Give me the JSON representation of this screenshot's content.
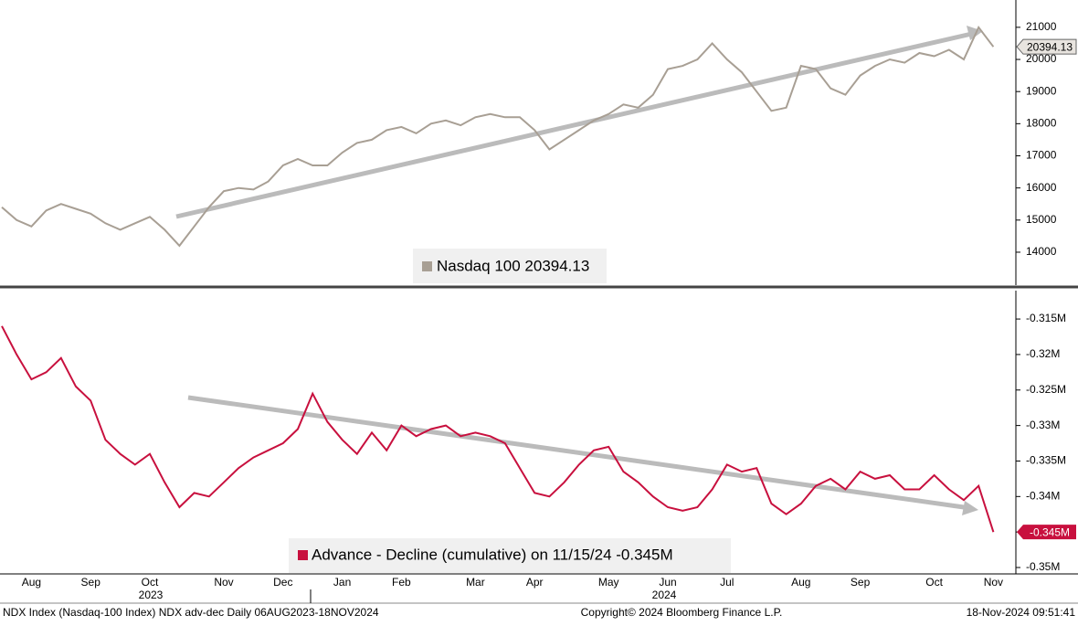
{
  "chart_data": [
    {
      "type": "line",
      "series": [
        {
          "name": "Nasdaq 100 20394.13",
          "color": "#a89f94",
          "last_label": "20394.13",
          "values": [
            15400,
            15000,
            14800,
            15300,
            15500,
            15350,
            15200,
            14900,
            14700,
            14900,
            15100,
            14700,
            14200,
            14800,
            15400,
            15900,
            16000,
            15950,
            16200,
            16700,
            16900,
            16700,
            16700,
            17100,
            17400,
            17500,
            17800,
            17900,
            17700,
            18000,
            18100,
            17950,
            18200,
            18300,
            18200,
            18200,
            17800,
            17200,
            17500,
            17800,
            18100,
            18300,
            18600,
            18500,
            18900,
            19700,
            19800,
            20000,
            20500,
            20000,
            19600,
            19000,
            18400,
            18500,
            19800,
            19700,
            19100,
            18900,
            19500,
            19800,
            20000,
            19900,
            20200,
            20100,
            20300,
            20000,
            21000,
            20394.13
          ]
        }
      ],
      "ylim": [
        12975,
        21850
      ],
      "yticks": [
        14000,
        15000,
        16000,
        17000,
        18000,
        19000,
        20000,
        21000
      ]
    },
    {
      "type": "line",
      "categories": [
        null,
        null,
        "Aug",
        null,
        null,
        null,
        "Sep",
        null,
        null,
        null,
        "Oct",
        null,
        null,
        null,
        null,
        "Nov",
        null,
        null,
        null,
        "Dec",
        null,
        null,
        null,
        "Jan",
        null,
        null,
        null,
        "Feb",
        null,
        null,
        null,
        null,
        "Mar",
        null,
        null,
        null,
        "Apr",
        null,
        null,
        null,
        null,
        "May",
        null,
        null,
        null,
        "Jun",
        null,
        null,
        null,
        "Jul",
        null,
        null,
        null,
        null,
        "Aug",
        null,
        null,
        null,
        "Sep",
        null,
        null,
        null,
        null,
        "Oct",
        null,
        null,
        null,
        "Nov"
      ],
      "year_labels": [
        "2023",
        "2024"
      ],
      "series": [
        {
          "name": "Advance - Decline (cumulative) on 11/15/24 -0.345M",
          "color": "#c8103e",
          "last_label": "-0.345M",
          "values": [
            -0.316,
            -0.32,
            -0.3235,
            -0.3225,
            -0.3205,
            -0.3245,
            -0.3265,
            -0.332,
            -0.334,
            -0.3355,
            -0.334,
            -0.338,
            -0.3415,
            -0.3395,
            -0.34,
            -0.338,
            -0.336,
            -0.3345,
            -0.3335,
            -0.3325,
            -0.3305,
            -0.3255,
            -0.3295,
            -0.332,
            -0.334,
            -0.331,
            -0.3335,
            -0.33,
            -0.3315,
            -0.3305,
            -0.33,
            -0.3315,
            -0.331,
            -0.3315,
            -0.3325,
            -0.336,
            -0.3395,
            -0.34,
            -0.338,
            -0.3355,
            -0.3335,
            -0.333,
            -0.3365,
            -0.338,
            -0.34,
            -0.3415,
            -0.342,
            -0.3415,
            -0.339,
            -0.3355,
            -0.3365,
            -0.336,
            -0.341,
            -0.3425,
            -0.341,
            -0.3385,
            -0.3375,
            -0.339,
            -0.3365,
            -0.3375,
            -0.337,
            -0.339,
            -0.339,
            -0.337,
            -0.339,
            -0.3405,
            -0.3385,
            -0.345
          ]
        }
      ],
      "ylim": [
        -0.3509,
        -0.311
      ],
      "yticks": [
        {
          "value": -0.315,
          "label": "-0.315M"
        },
        {
          "value": -0.32,
          "label": "-0.32M"
        },
        {
          "value": -0.325,
          "label": "-0.325M"
        },
        {
          "value": -0.33,
          "label": "-0.33M"
        },
        {
          "value": -0.335,
          "label": "-0.335M"
        },
        {
          "value": -0.34,
          "label": "-0.34M"
        },
        {
          "value": -0.345,
          "label": "-0.345M"
        },
        {
          "value": -0.35,
          "label": "-0.35M"
        }
      ]
    }
  ],
  "footer": {
    "left": "NDX Index (Nasdaq-100 Index) NDX adv-dec  Daily 06AUG2023-18NOV2024",
    "center": "Copyright© 2024 Bloomberg Finance L.P.",
    "right": "18-Nov-2024 09:51:41"
  }
}
